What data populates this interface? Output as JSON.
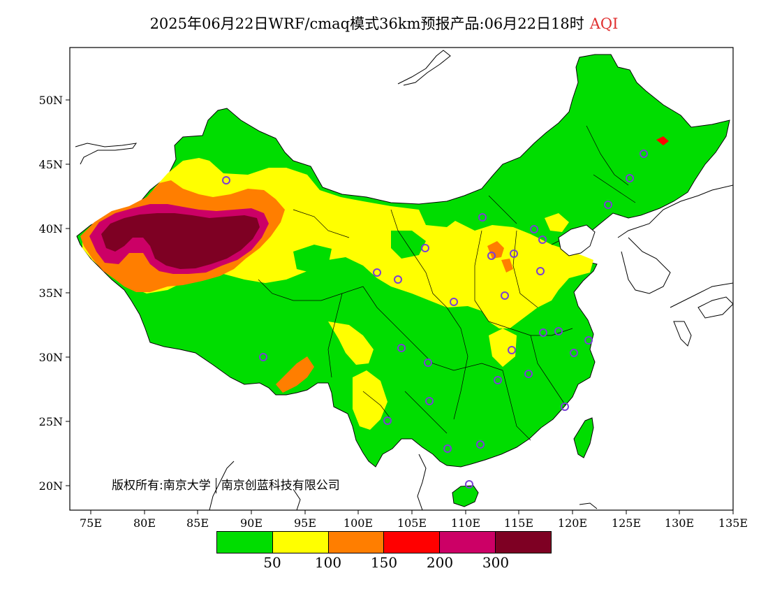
{
  "title": {
    "main": "2025年06月22日WRF/cmaq模式36km预报产品:06月22日18时",
    "variable": "AQI",
    "variable_color": "#e03030"
  },
  "axes": {
    "x_ticks": [
      "75E",
      "80E",
      "85E",
      "90E",
      "95E",
      "100E",
      "105E",
      "110E",
      "115E",
      "120E",
      "125E",
      "130E",
      "135E"
    ],
    "y_ticks": [
      "50N",
      "45N",
      "40N",
      "35N",
      "30N",
      "25N",
      "20N"
    ]
  },
  "copyright": {
    "part1": "版权所有:南京大学",
    "part2": "南京创蓝科技有限公司"
  },
  "legend": {
    "colors": [
      "#00dd00",
      "#ffff00",
      "#ff7e00",
      "#ff0000",
      "#cc0066",
      "#7e0023"
    ],
    "labels": [
      "50",
      "100",
      "150",
      "200",
      "300"
    ]
  },
  "colors": {
    "good": "#00dd00",
    "moderate": "#ffff00",
    "sensitive": "#ff7e00",
    "unhealthy": "#ff0000",
    "very_unhealthy": "#cc0066",
    "hazardous": "#7e0023",
    "station_marker": "#7a3fd6"
  }
}
